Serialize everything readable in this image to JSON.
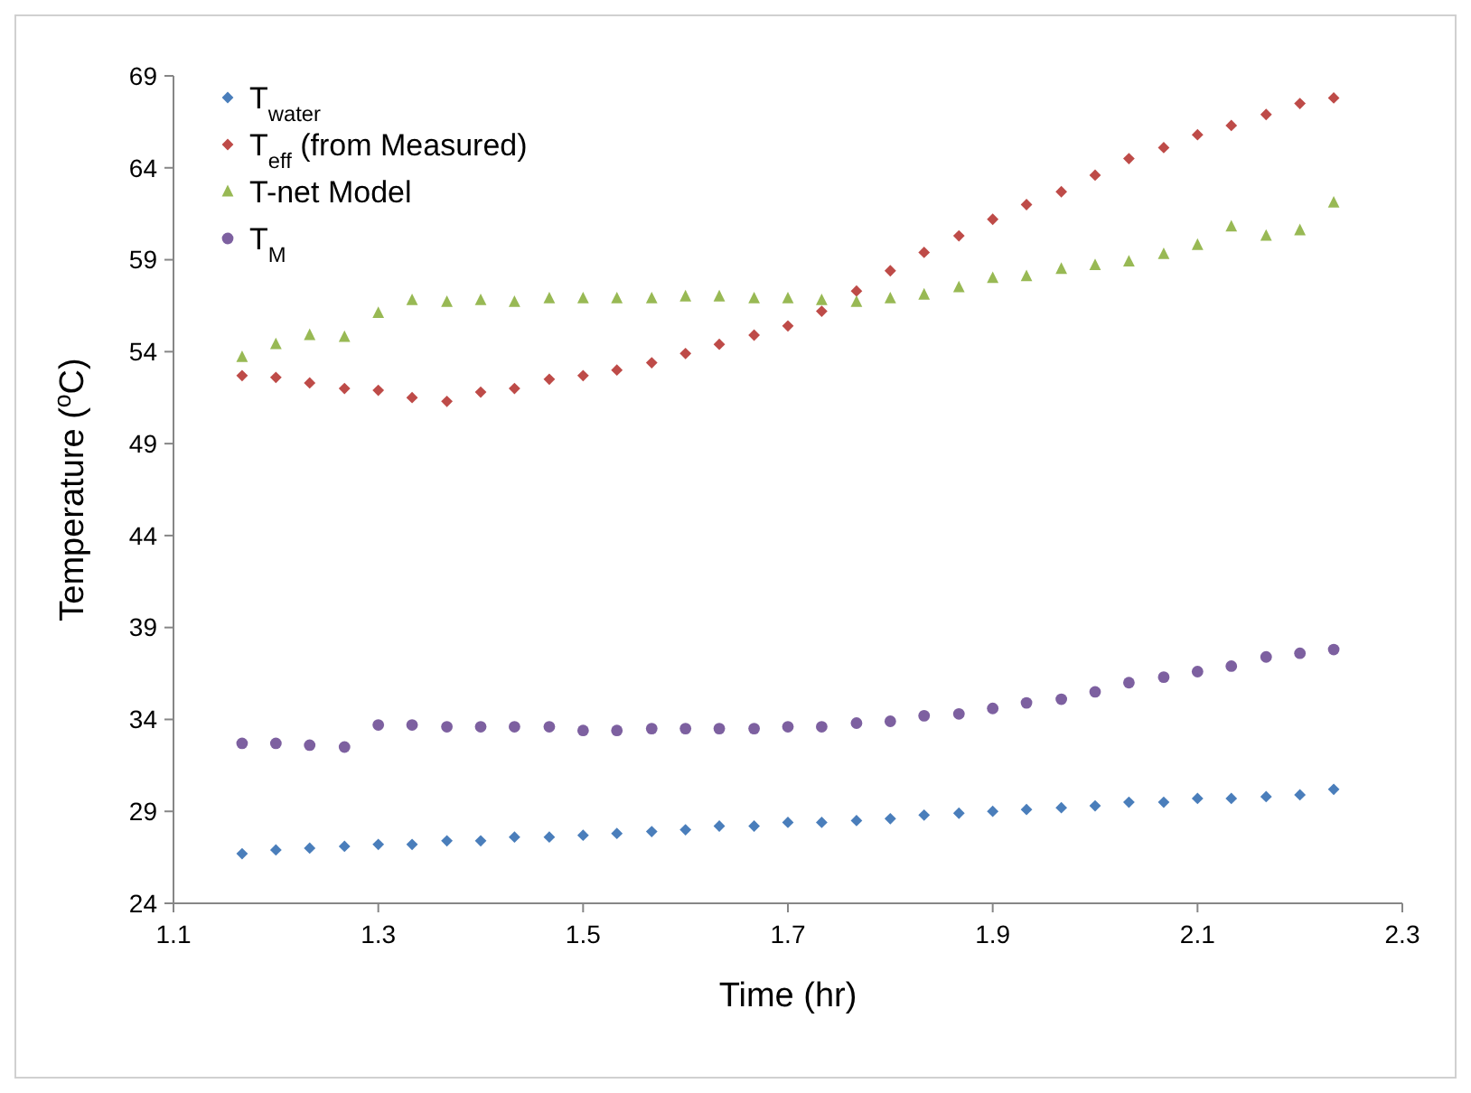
{
  "chart_data": {
    "type": "scatter",
    "xlabel": "Time (hr)",
    "ylabel": "Temperature ($^{o}$C)",
    "x": [
      1.167,
      1.2,
      1.233,
      1.267,
      1.3,
      1.333,
      1.367,
      1.4,
      1.433,
      1.467,
      1.5,
      1.533,
      1.567,
      1.6,
      1.633,
      1.667,
      1.7,
      1.733,
      1.767,
      1.8,
      1.833,
      1.867,
      1.9,
      1.933,
      1.967,
      2.0,
      2.033,
      2.067,
      2.1,
      2.133,
      2.167,
      2.2,
      2.233
    ],
    "series": [
      {
        "name": "T$_{water}$",
        "color": "#4a7ebb",
        "marker": "diamond",
        "values": [
          26.7,
          26.9,
          27.0,
          27.1,
          27.2,
          27.2,
          27.4,
          27.4,
          27.6,
          27.6,
          27.7,
          27.8,
          27.9,
          28.0,
          28.2,
          28.2,
          28.4,
          28.4,
          28.5,
          28.6,
          28.8,
          28.9,
          29.0,
          29.1,
          29.2,
          29.3,
          29.5,
          29.5,
          29.7,
          29.7,
          29.8,
          29.9,
          30.2
        ]
      },
      {
        "name": "T$_{eff}$ (from Measured)",
        "color": "#be4b48",
        "marker": "diamond",
        "values": [
          52.7,
          52.6,
          52.3,
          52.0,
          51.9,
          51.5,
          51.3,
          51.8,
          52.0,
          52.5,
          52.7,
          53.0,
          53.4,
          53.9,
          54.4,
          54.9,
          55.4,
          56.2,
          57.3,
          58.4,
          59.4,
          60.3,
          61.2,
          62.0,
          62.7,
          63.6,
          64.5,
          65.1,
          65.8,
          66.3,
          66.9,
          67.5,
          67.8
        ]
      },
      {
        "name": "T-net Model",
        "color": "#98b954",
        "marker": "triangle",
        "values": [
          53.7,
          54.4,
          54.9,
          54.8,
          56.1,
          56.8,
          56.7,
          56.8,
          56.7,
          56.9,
          56.9,
          56.9,
          56.9,
          57.0,
          57.0,
          56.9,
          56.9,
          56.8,
          56.7,
          56.9,
          57.1,
          57.5,
          58.0,
          58.1,
          58.5,
          58.7,
          58.9,
          59.3,
          59.8,
          60.8,
          60.3,
          60.6,
          62.1
        ]
      },
      {
        "name": "T$_{M}$",
        "color": "#7d60a0",
        "marker": "circle",
        "values": [
          32.7,
          32.7,
          32.6,
          32.5,
          33.7,
          33.7,
          33.6,
          33.6,
          33.6,
          33.6,
          33.4,
          33.4,
          33.5,
          33.5,
          33.5,
          33.5,
          33.6,
          33.6,
          33.8,
          33.9,
          34.2,
          34.3,
          34.6,
          34.9,
          35.1,
          35.5,
          36.0,
          36.3,
          36.6,
          36.9,
          37.4,
          37.6,
          37.8
        ]
      }
    ],
    "xlim": [
      1.1,
      2.3
    ],
    "xticks": [
      1.1,
      1.3,
      1.5,
      1.7,
      1.9,
      2.1,
      2.3
    ],
    "ylim": [
      24,
      69
    ],
    "yticks": [
      24,
      29,
      34,
      39,
      44,
      49,
      54,
      59,
      64,
      69
    ],
    "grid": false,
    "legend": "top left"
  }
}
